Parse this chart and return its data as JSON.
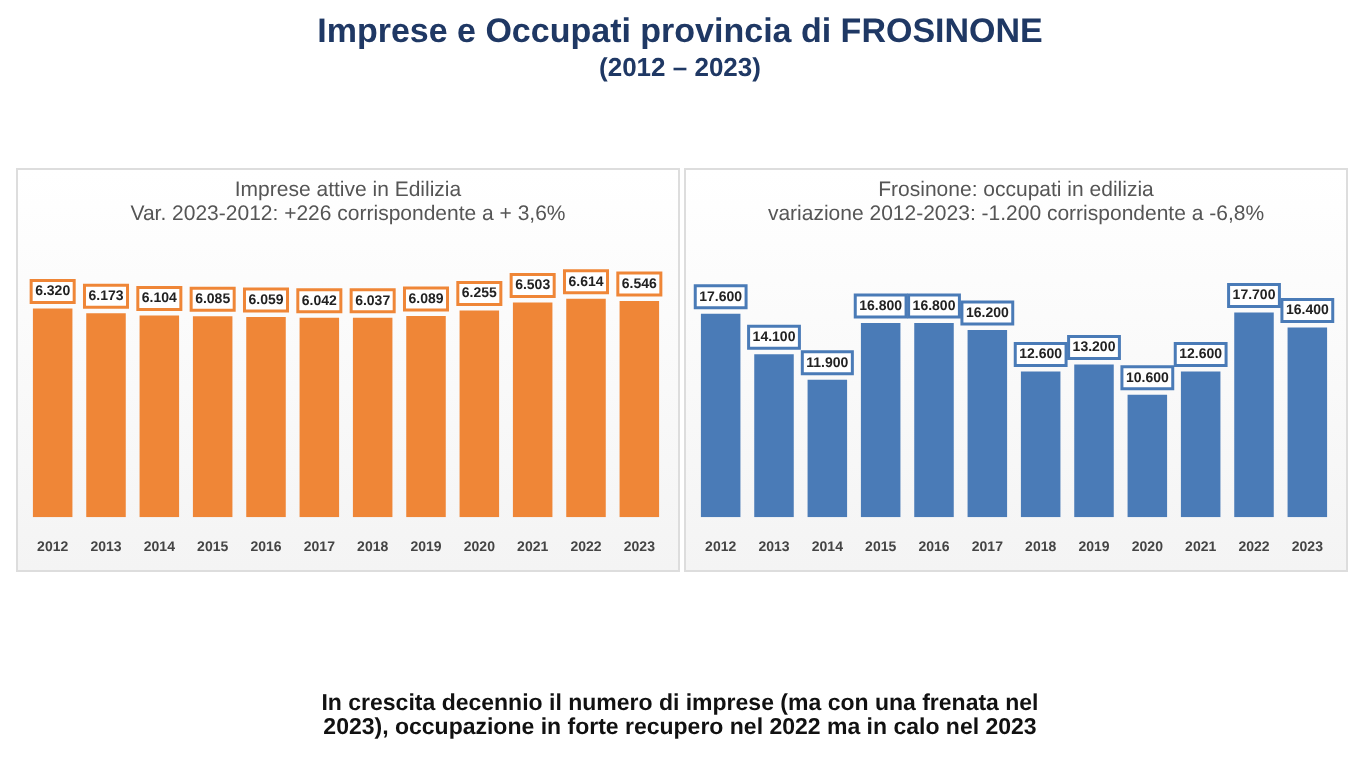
{
  "chart_data": [
    {
      "type": "other",
      "title": "Imprese e Occupati provincia di FROSINONE",
      "subtitle": "(2012 – 2023)",
      "annotations": [
        "In crescita decennio il numero di imprese (ma con una frenata nel 2023), occupazione in forte recupero nel 2022 ma in calo nel 2023"
      ]
    },
    {
      "type": "bar",
      "title": "Imprese attive in Edilizia",
      "subtitle": "Var. 2023-2012: +226 corrispondente a + 3,6%",
      "categories": [
        "2012",
        "2013",
        "2014",
        "2015",
        "2016",
        "2017",
        "2018",
        "2019",
        "2020",
        "2021",
        "2022",
        "2023"
      ],
      "values": [
        6320,
        6173,
        6104,
        6085,
        6059,
        6042,
        6037,
        6089,
        6255,
        6503,
        6614,
        6546
      ],
      "value_labels": [
        "6.320",
        "6.173",
        "6.104",
        "6.085",
        "6.059",
        "6.042",
        "6.037",
        "6.089",
        "6.255",
        "6.503",
        "6.614",
        "6.546"
      ],
      "color": "#ef8637",
      "tick_labels": "x"
    },
    {
      "type": "bar",
      "title": "Frosinone: occupati in edilizia",
      "subtitle": "variazione 2012-2023: -1.200 corrispondente a -6,8%",
      "categories": [
        "2012",
        "2013",
        "2014",
        "2015",
        "2016",
        "2017",
        "2018",
        "2019",
        "2020",
        "2021",
        "2022",
        "2023"
      ],
      "values": [
        17600,
        14100,
        11900,
        16800,
        16800,
        16200,
        12600,
        13200,
        10600,
        12600,
        17700,
        16400
      ],
      "value_labels": [
        "17.600",
        "14.100",
        "11.900",
        "16.800",
        "16.800",
        "16.200",
        "12.600",
        "13.200",
        "10.600",
        "12.600",
        "17.700",
        "16.400"
      ],
      "color": "#4a7bb7",
      "tick_labels": "x"
    }
  ]
}
